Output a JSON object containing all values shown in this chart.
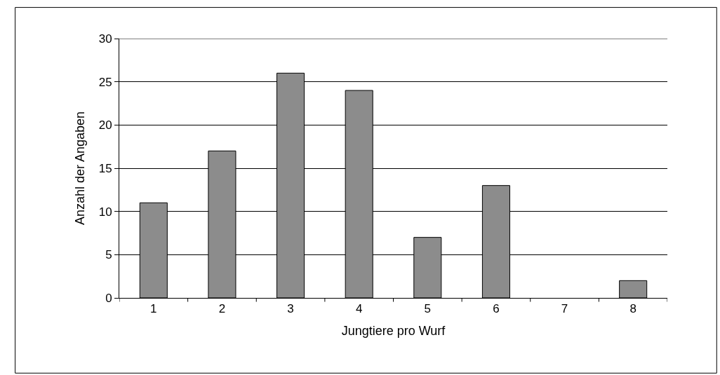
{
  "chart_data": {
    "type": "bar",
    "xlabel": "Jungtiere pro Wurf",
    "ylabel": "Anzahl der Angaben",
    "categories": [
      "1",
      "2",
      "3",
      "4",
      "5",
      "6",
      "7",
      "8"
    ],
    "values": [
      11,
      17,
      26,
      24,
      7,
      13,
      0,
      2
    ],
    "color": "#8c8c8c",
    "ylim": [
      0,
      30
    ],
    "yticks": [
      0,
      5,
      10,
      15,
      20,
      25,
      30
    ],
    "grid": "y",
    "legend": false
  }
}
